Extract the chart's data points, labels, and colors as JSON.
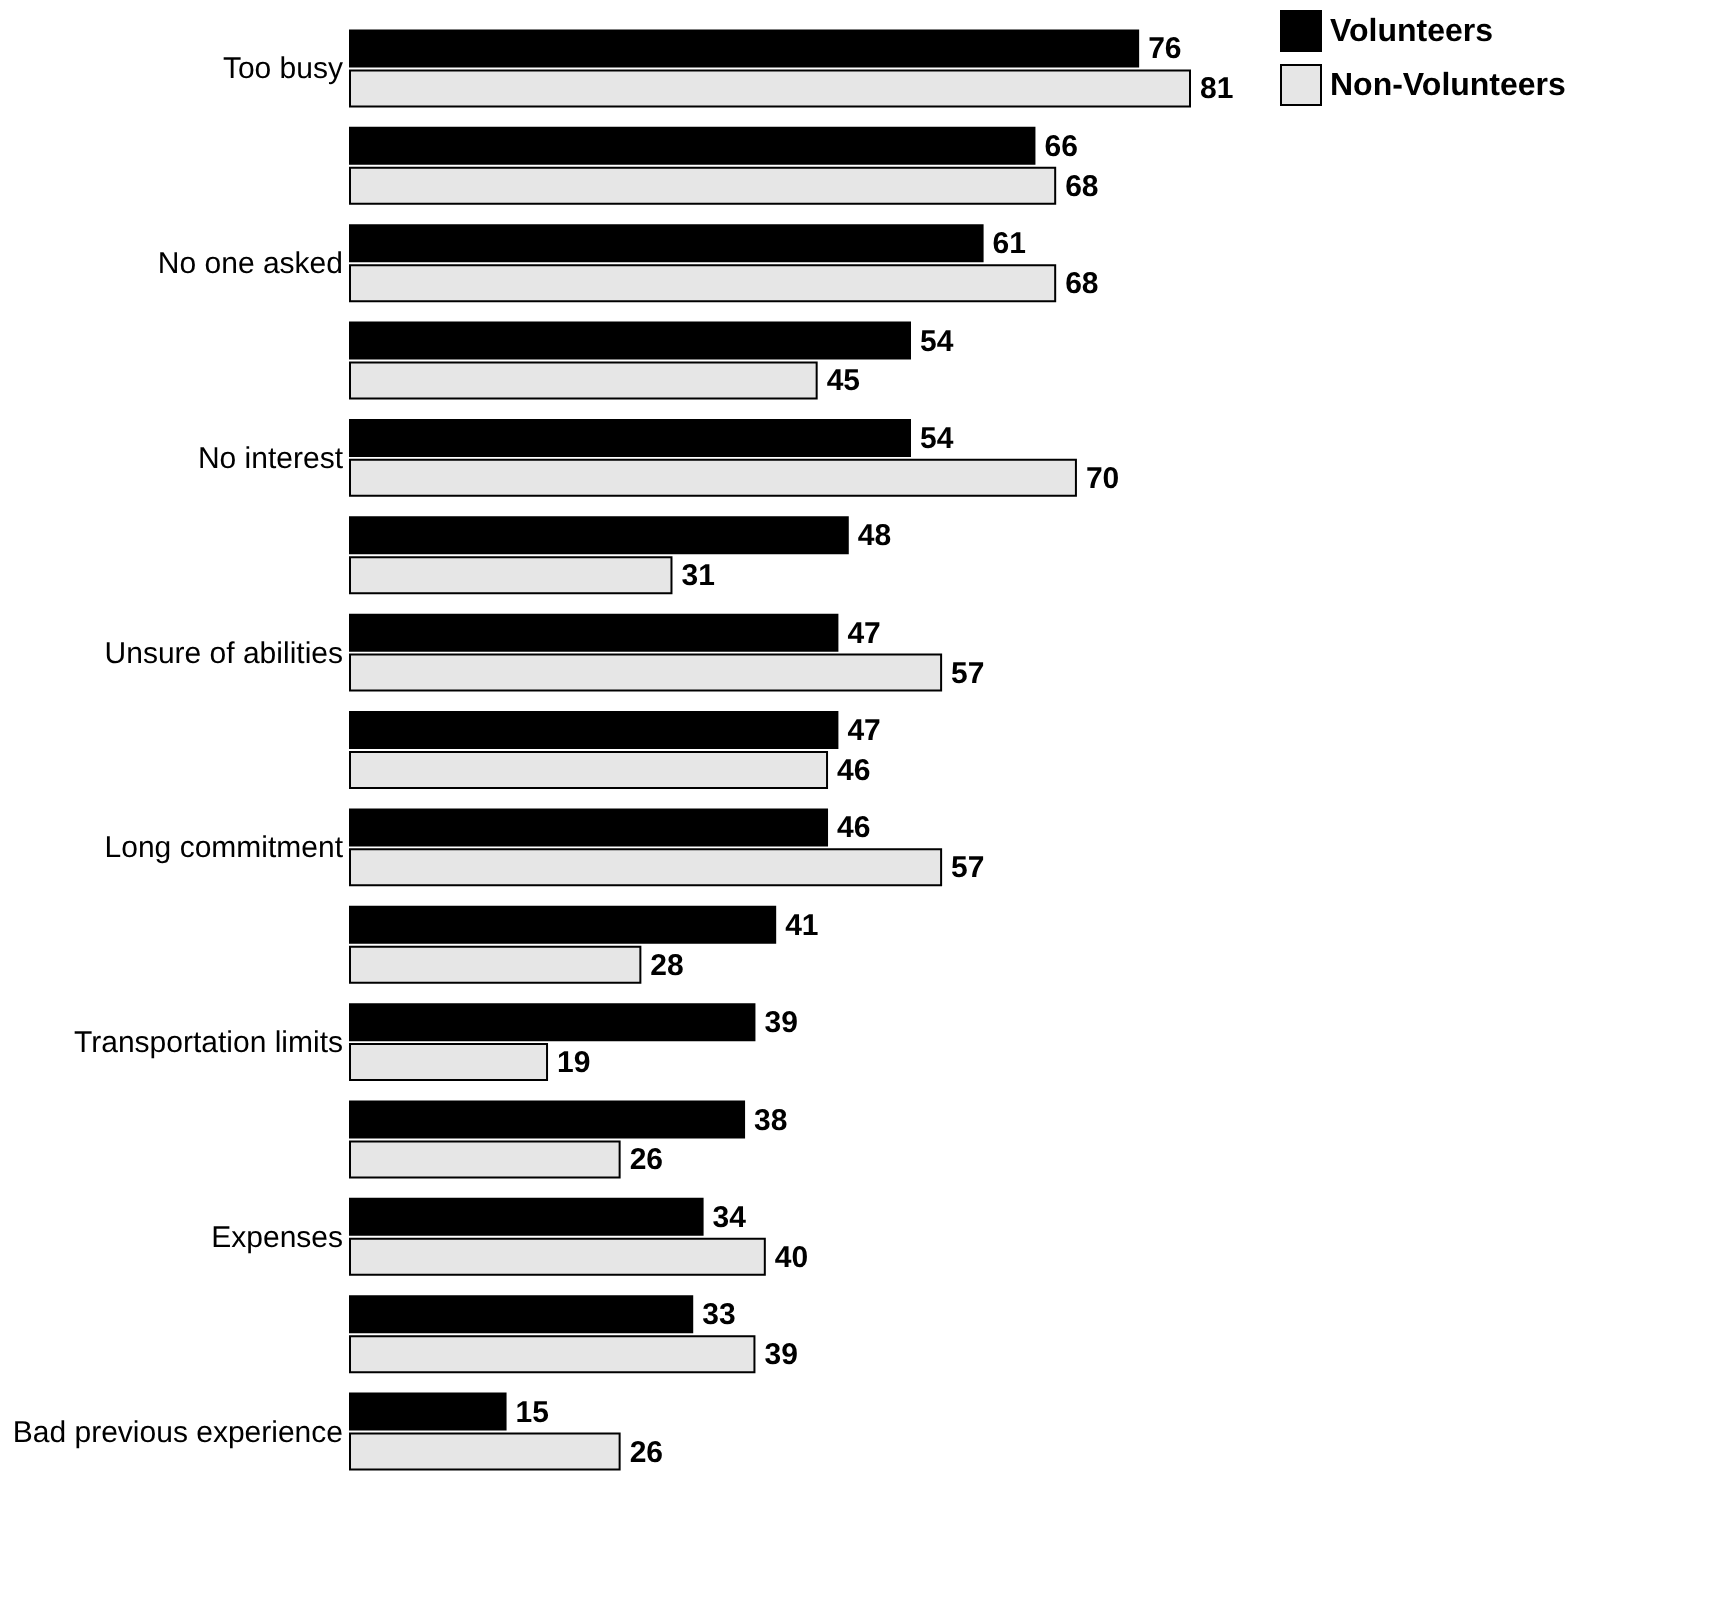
{
  "chart_data": {
    "type": "bar",
    "orientation": "horizontal",
    "categories": [
      "Too busy",
      null,
      "No one asked",
      null,
      "No interest",
      null,
      "Unsure of abilities",
      null,
      "Long commitment",
      null,
      "Transportation limits",
      null,
      "Expenses",
      null,
      "Bad previous experience"
    ],
    "series": [
      {
        "name": "Volunteers",
        "color": "#000000",
        "values": [
          76,
          66,
          61,
          54,
          54,
          48,
          47,
          47,
          46,
          41,
          39,
          38,
          34,
          33,
          15
        ]
      },
      {
        "name": "Non-Volunteers",
        "color": "#e6e6e6",
        "values": [
          81,
          68,
          68,
          45,
          70,
          31,
          57,
          46,
          57,
          28,
          19,
          26,
          40,
          39,
          26
        ]
      }
    ],
    "data_labels": true,
    "legend": "right",
    "grid": false
  }
}
